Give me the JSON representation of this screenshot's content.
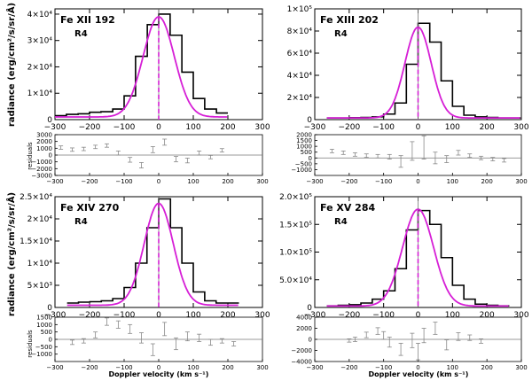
{
  "figure": {
    "ylabel_radiance": "radiance (erg/cm²/s/sr/Å)",
    "ylabel_residuals": "residuals",
    "xlabel": "Doppler velocity (km s⁻¹)"
  },
  "colors": {
    "fit": "#d61fd6",
    "histogram": "#000000",
    "residual": "#888888",
    "centroid": "#d61fd6"
  },
  "chart_data": [
    {
      "type": "line",
      "title": "Fe XII 192",
      "region": "R4",
      "xlim": [
        -300,
        300
      ],
      "ylim": [
        0,
        42000
      ],
      "x_ticks": [
        "−300",
        "−200",
        "−100",
        "0",
        "100",
        "200",
        "300"
      ],
      "y_ticks": [
        {
          "v": 0,
          "label": "0"
        },
        {
          "v": 10000,
          "label": "1×10⁴"
        },
        {
          "v": 20000,
          "label": "2×10⁴"
        },
        {
          "v": 30000,
          "label": "3×10⁴"
        },
        {
          "v": 40000,
          "label": "4×10⁴"
        }
      ],
      "histogram_edges": [
        -300,
        -267,
        -233,
        -200,
        -167,
        -133,
        -100,
        -67,
        -33,
        0,
        33,
        67,
        100,
        133,
        167,
        200
      ],
      "histogram_values": [
        1500,
        2000,
        2200,
        2800,
        3000,
        4000,
        9000,
        24000,
        36000,
        40000,
        32000,
        18000,
        8000,
        4000,
        2500
      ],
      "fit": {
        "amplitude": 38000,
        "center": 0,
        "sigma": 45,
        "baseline": 1000
      },
      "residuals": {
        "ylim": [
          -3000,
          3000
        ],
        "y_ticks": [
          {
            "v": 3000,
            "label": "3000"
          },
          {
            "v": 2000,
            "label": "2000"
          },
          {
            "v": 1000,
            "label": "1000"
          },
          {
            "v": 0,
            "label": "0"
          },
          {
            "v": -1000,
            "label": "−1000"
          },
          {
            "v": -2000,
            "label": "−2000"
          },
          {
            "v": -3000,
            "label": "−3000"
          }
        ],
        "x": [
          -283,
          -250,
          -217,
          -183,
          -150,
          -117,
          -83,
          -50,
          -17,
          17,
          50,
          83,
          117,
          150,
          183
        ],
        "values": [
          1100,
          800,
          900,
          1200,
          1400,
          300,
          -700,
          -1500,
          800,
          1900,
          -600,
          -800,
          300,
          -300,
          700
        ],
        "errors": [
          250,
          250,
          250,
          250,
          250,
          300,
          350,
          400,
          450,
          450,
          400,
          350,
          300,
          250,
          250
        ]
      }
    },
    {
      "type": "line",
      "title": "Fe XIII 202",
      "region": "R4",
      "xlim": [
        -300,
        300
      ],
      "ylim": [
        0,
        100000
      ],
      "x_ticks": [
        "−300",
        "−200",
        "−100",
        "0",
        "100",
        "200",
        "300"
      ],
      "y_ticks": [
        {
          "v": 0,
          "label": "0"
        },
        {
          "v": 20000,
          "label": "2×10⁴"
        },
        {
          "v": 40000,
          "label": "4×10⁴"
        },
        {
          "v": 60000,
          "label": "6×10⁴"
        },
        {
          "v": 80000,
          "label": "8×10⁴"
        },
        {
          "v": 100000,
          "label": "1×10⁵"
        }
      ],
      "histogram_edges": [
        -265,
        -232,
        -199,
        -166,
        -133,
        -100,
        -67,
        -34,
        0,
        34,
        67,
        100,
        133,
        166,
        199,
        232,
        265,
        298
      ],
      "histogram_values": [
        1500,
        1500,
        1800,
        2000,
        2500,
        5000,
        15000,
        50000,
        87000,
        70000,
        35000,
        12000,
        4000,
        2500,
        2000,
        1500,
        1500
      ],
      "fit": {
        "amplitude": 82000,
        "center": 0,
        "sigma": 38,
        "baseline": 1500
      },
      "residuals": {
        "ylim": [
          -1500,
          2000
        ],
        "y_ticks": [
          {
            "v": 2000,
            "label": "2000"
          },
          {
            "v": 1500,
            "label": "1500"
          },
          {
            "v": 1000,
            "label": "1000"
          },
          {
            "v": 500,
            "label": "500"
          },
          {
            "v": 0,
            "label": "0"
          },
          {
            "v": -500,
            "label": "−500"
          },
          {
            "v": -1000,
            "label": "−1000"
          }
        ],
        "x": [
          -250,
          -217,
          -183,
          -150,
          -117,
          -83,
          -50,
          -17,
          17,
          50,
          83,
          117,
          150,
          183,
          217,
          250
        ],
        "values": [
          600,
          450,
          300,
          200,
          150,
          100,
          -300,
          600,
          900,
          0,
          -100,
          450,
          200,
          0,
          -100,
          -200
        ],
        "errors": [
          150,
          150,
          150,
          150,
          150,
          200,
          500,
          800,
          1000,
          500,
          300,
          200,
          150,
          150,
          150,
          150
        ]
      }
    },
    {
      "type": "line",
      "title": "Fe XIV 270",
      "region": "R4",
      "xlim": [
        -300,
        300
      ],
      "ylim": [
        0,
        25000
      ],
      "x_ticks": [
        "−300",
        "−200",
        "−100",
        "0",
        "100",
        "200",
        "300"
      ],
      "y_ticks": [
        {
          "v": 0,
          "label": "0"
        },
        {
          "v": 5000,
          "label": "5×10³"
        },
        {
          "v": 10000,
          "label": "1×10⁴"
        },
        {
          "v": 15000,
          "label": "1.5×10⁴"
        },
        {
          "v": 20000,
          "label": "2×10⁴"
        },
        {
          "v": 25000,
          "label": "2.5×10⁴"
        }
      ],
      "histogram_edges": [
        -265,
        -232,
        -199,
        -166,
        -133,
        -100,
        -67,
        -34,
        0,
        34,
        67,
        100,
        133,
        166,
        199,
        232
      ],
      "histogram_values": [
        1000,
        1200,
        1300,
        1500,
        2000,
        4500,
        10000,
        18000,
        24500,
        18000,
        10000,
        3500,
        1500,
        1000,
        1000
      ],
      "fit": {
        "amplitude": 23000,
        "center": 0,
        "sigma": 42,
        "baseline": 500
      },
      "residuals": {
        "ylim": [
          -1500,
          1500
        ],
        "y_ticks": [
          {
            "v": 1500,
            "label": "1500"
          },
          {
            "v": 1000,
            "label": "1000"
          },
          {
            "v": 500,
            "label": "500"
          },
          {
            "v": 0,
            "label": "0"
          },
          {
            "v": -500,
            "label": "−500"
          },
          {
            "v": -1000,
            "label": "−1000"
          }
        ],
        "x": [
          -250,
          -217,
          -183,
          -150,
          -117,
          -83,
          -50,
          -17,
          17,
          50,
          83,
          117,
          150,
          183,
          217
        ],
        "values": [
          -200,
          -100,
          300,
          1200,
          1000,
          700,
          100,
          -700,
          700,
          -300,
          200,
          100,
          -200,
          -100,
          -300
        ],
        "errors": [
          150,
          150,
          200,
          250,
          250,
          300,
          350,
          400,
          450,
          400,
          300,
          250,
          200,
          150,
          150
        ]
      }
    },
    {
      "type": "line",
      "title": "Fe XV 284",
      "region": "R4",
      "xlim": [
        -300,
        300
      ],
      "ylim": [
        0,
        200000
      ],
      "x_ticks": [
        "−300",
        "−200",
        "−100",
        "0",
        "100",
        "200",
        "300"
      ],
      "y_ticks": [
        {
          "v": 0,
          "label": "0"
        },
        {
          "v": 50000,
          "label": "5.0×10⁴"
        },
        {
          "v": 100000,
          "label": "1.0×10⁵"
        },
        {
          "v": 150000,
          "label": "1.5×10⁵"
        },
        {
          "v": 200000,
          "label": "2.0×10⁵"
        }
      ],
      "histogram_edges": [
        -265,
        -232,
        -199,
        -166,
        -133,
        -100,
        -67,
        -34,
        0,
        34,
        67,
        100,
        133,
        166,
        199,
        232,
        265
      ],
      "histogram_values": [
        3000,
        4000,
        5000,
        8000,
        15000,
        30000,
        70000,
        140000,
        175000,
        150000,
        90000,
        40000,
        15000,
        6000,
        4000,
        3000
      ],
      "fit": {
        "amplitude": 175000,
        "center": 0,
        "sigma": 45,
        "baseline": 2500
      },
      "residuals": {
        "ylim": [
          -4000,
          4000
        ],
        "y_ticks": [
          {
            "v": 4000,
            "label": "4000"
          },
          {
            "v": 2000,
            "label": "2000"
          },
          {
            "v": 0,
            "label": "0"
          },
          {
            "v": -2000,
            "label": "−2000"
          },
          {
            "v": -4000,
            "label": "−4000"
          }
        ],
        "x": [
          -200,
          -183,
          -150,
          -117,
          -100,
          -83,
          -50,
          -17,
          0,
          17,
          50,
          83,
          117,
          150,
          183
        ],
        "values": [
          -200,
          0,
          800,
          1500,
          700,
          -500,
          -1800,
          -200,
          -2200,
          700,
          2000,
          -1000,
          500,
          300,
          -300
        ],
        "errors": [
          300,
          400,
          500,
          600,
          700,
          900,
          1100,
          1300,
          1500,
          1300,
          1100,
          900,
          700,
          500,
          400
        ]
      }
    }
  ]
}
